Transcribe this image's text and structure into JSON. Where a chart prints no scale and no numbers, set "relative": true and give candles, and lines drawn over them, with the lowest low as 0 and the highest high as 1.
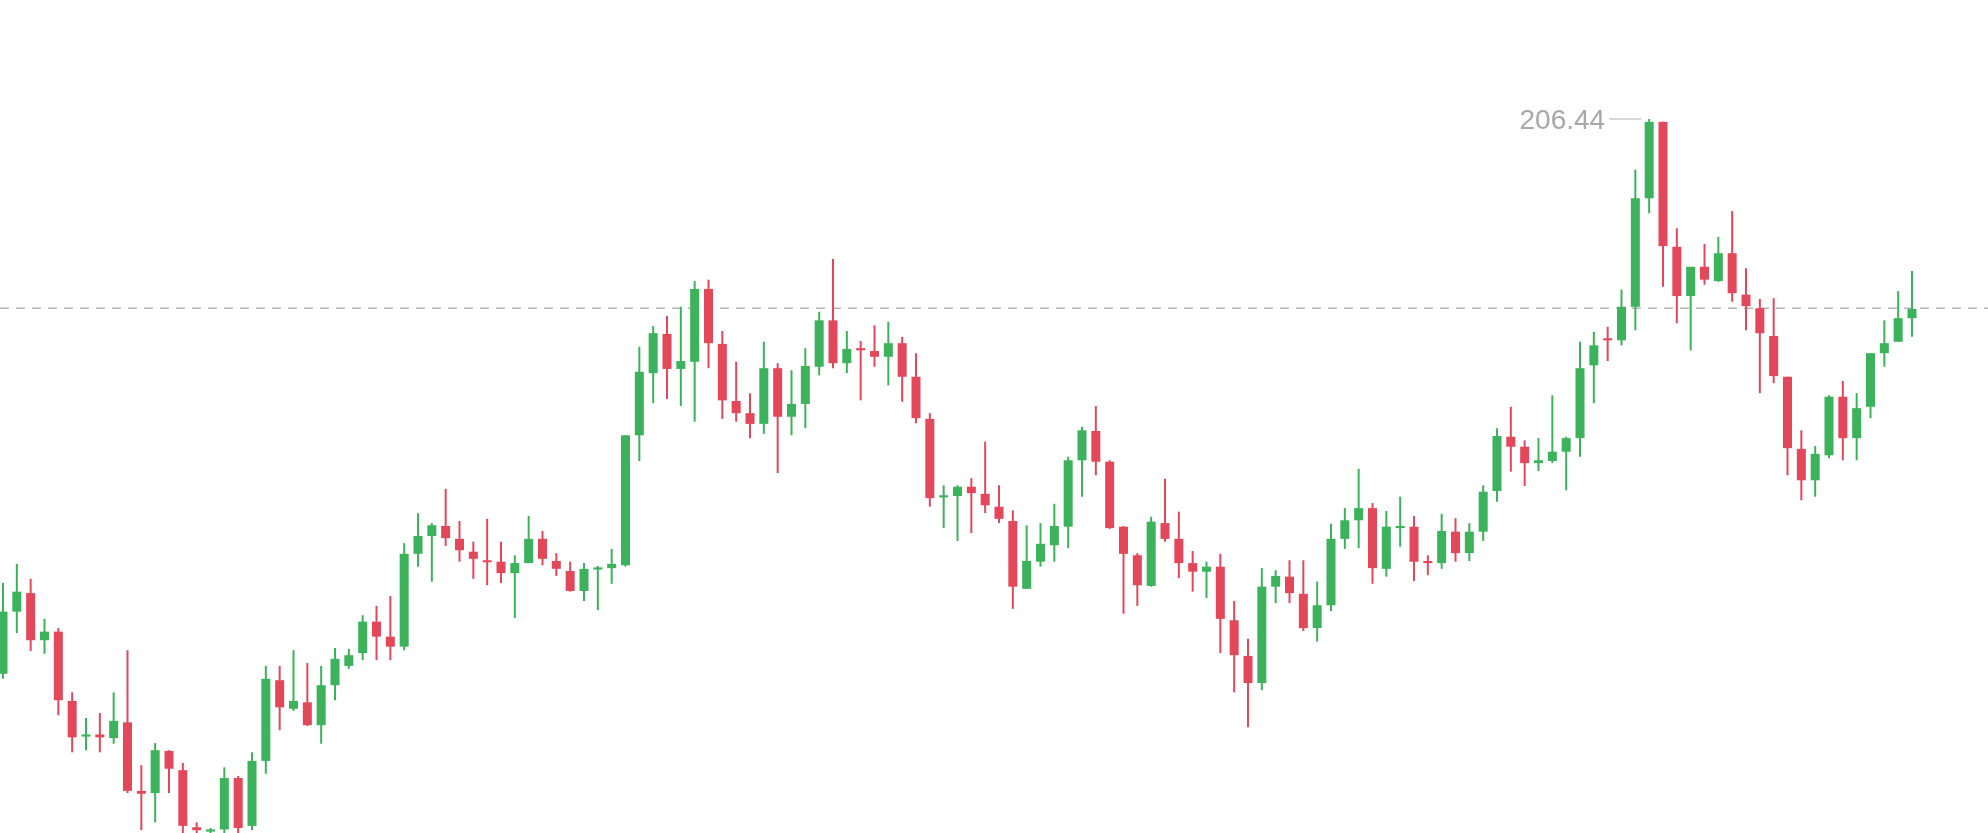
{
  "chart_data": {
    "type": "candlestick",
    "relative": true,
    "categories": [
      null,
      null,
      null,
      null,
      null,
      null,
      null,
      null,
      null,
      null,
      null,
      null,
      null,
      null,
      null,
      null,
      null,
      null,
      null,
      null,
      null,
      null,
      null,
      null,
      null,
      null,
      null,
      null,
      null,
      null,
      null,
      null,
      null,
      null,
      null,
      null,
      null,
      null,
      null,
      null,
      null,
      null,
      null,
      null,
      null,
      null,
      null,
      null,
      null,
      null,
      null,
      null,
      null,
      null,
      null,
      null,
      null,
      null,
      null,
      null,
      null,
      null,
      null,
      null,
      null,
      null,
      null,
      null,
      null,
      null,
      null,
      null,
      null,
      null,
      null,
      null,
      null,
      null,
      null,
      null,
      null,
      null,
      null,
      null,
      null,
      null,
      null,
      null,
      null,
      null,
      null,
      null,
      null,
      null,
      null,
      null,
      null,
      null,
      null,
      null,
      null,
      null,
      null,
      null,
      null,
      null,
      null,
      null,
      null,
      null,
      null,
      null,
      null,
      null,
      null,
      null,
      null,
      null,
      null,
      null,
      null,
      null,
      null,
      null,
      null,
      null,
      null,
      null,
      null,
      null,
      null,
      null,
      null,
      null,
      null,
      null,
      null,
      null,
      null
    ],
    "ohlc": [
      [
        0.223,
        0.35,
        0.216,
        0.31
      ],
      [
        0.31,
        0.377,
        0.28,
        0.338
      ],
      [
        0.336,
        0.356,
        0.255,
        0.27
      ],
      [
        0.27,
        0.3,
        0.251,
        0.282
      ],
      [
        0.282,
        0.287,
        0.165,
        0.186
      ],
      [
        0.185,
        0.197,
        0.113,
        0.134
      ],
      [
        0.135,
        0.161,
        0.116,
        0.138
      ],
      [
        0.138,
        0.168,
        0.113,
        0.134
      ],
      [
        0.133,
        0.197,
        0.125,
        0.157
      ],
      [
        0.155,
        0.256,
        0.056,
        0.059
      ],
      [
        0.059,
        0.095,
        0.004,
        0.055
      ],
      [
        0.056,
        0.126,
        0.015,
        0.116
      ],
      [
        0.115,
        0.116,
        0.056,
        0.09
      ],
      [
        0.088,
        0.098,
        0,
        0.01
      ],
      [
        0.008,
        0.015,
        0,
        0.004
      ],
      [
        0.002,
        0.007,
        0,
        0.005
      ],
      [
        0.005,
        0.092,
        0,
        0.077
      ],
      [
        0.077,
        0.08,
        0,
        0.007
      ],
      [
        0.01,
        0.113,
        0.004,
        0.101
      ],
      [
        0.101,
        0.234,
        0.083,
        0.216
      ],
      [
        0.214,
        0.234,
        0.144,
        0.176
      ],
      [
        0.174,
        0.256,
        0.171,
        0.185
      ],
      [
        0.183,
        0.238,
        0.15,
        0.151
      ],
      [
        0.151,
        0.234,
        0.125,
        0.207
      ],
      [
        0.207,
        0.259,
        0.186,
        0.244
      ],
      [
        0.234,
        0.258,
        0.23,
        0.249
      ],
      [
        0.252,
        0.305,
        0.242,
        0.296
      ],
      [
        0.296,
        0.318,
        0.242,
        0.275
      ],
      [
        0.275,
        0.332,
        0.242,
        0.261
      ],
      [
        0.261,
        0.406,
        0.256,
        0.391
      ],
      [
        0.391,
        0.448,
        0.373,
        0.416
      ],
      [
        0.416,
        0.434,
        0.352,
        0.431
      ],
      [
        0.43,
        0.482,
        0.402,
        0.413
      ],
      [
        0.412,
        0.437,
        0.38,
        0.396
      ],
      [
        0.394,
        0.408,
        0.356,
        0.384
      ],
      [
        0.382,
        0.44,
        0.347,
        0.38
      ],
      [
        0.38,
        0.408,
        0.35,
        0.364
      ],
      [
        0.364,
        0.389,
        0.301,
        0.378
      ],
      [
        0.378,
        0.444,
        0.378,
        0.412
      ],
      [
        0.412,
        0.423,
        0.375,
        0.384
      ],
      [
        0.381,
        0.392,
        0.36,
        0.37
      ],
      [
        0.367,
        0.38,
        0.338,
        0.339
      ],
      [
        0.339,
        0.378,
        0.325,
        0.37
      ],
      [
        0.369,
        0.374,
        0.312,
        0.372
      ],
      [
        0.371,
        0.398,
        0.349,
        0.377
      ],
      [
        0.375,
        0.557,
        0.373,
        0.557
      ],
      [
        0.557,
        0.681,
        0.521,
        0.646
      ],
      [
        0.644,
        0.71,
        0.602,
        0.7
      ],
      [
        0.699,
        0.724,
        0.608,
        0.65
      ],
      [
        0.65,
        0.737,
        0.598,
        0.661
      ],
      [
        0.66,
        0.773,
        0.576,
        0.762
      ],
      [
        0.762,
        0.775,
        0.651,
        0.686
      ],
      [
        0.685,
        0.703,
        0.58,
        0.606
      ],
      [
        0.605,
        0.66,
        0.576,
        0.588
      ],
      [
        0.588,
        0.616,
        0.553,
        0.573
      ],
      [
        0.573,
        0.688,
        0.559,
        0.651
      ],
      [
        0.651,
        0.658,
        0.504,
        0.583
      ],
      [
        0.583,
        0.648,
        0.557,
        0.601
      ],
      [
        0.601,
        0.679,
        0.567,
        0.654
      ],
      [
        0.653,
        0.73,
        0.641,
        0.718
      ],
      [
        0.718,
        0.804,
        0.651,
        0.658
      ],
      [
        0.658,
        0.703,
        0.644,
        0.678
      ],
      [
        0.679,
        0.689,
        0.606,
        0.676
      ],
      [
        0.675,
        0.711,
        0.653,
        0.667
      ],
      [
        0.667,
        0.716,
        0.627,
        0.686
      ],
      [
        0.686,
        0.695,
        0.604,
        0.639
      ],
      [
        0.639,
        0.672,
        0.574,
        0.581
      ],
      [
        0.58,
        0.588,
        0.457,
        0.469
      ],
      [
        0.47,
        0.487,
        0.427,
        0.473
      ],
      [
        0.472,
        0.487,
        0.409,
        0.485
      ],
      [
        0.485,
        0.497,
        0.42,
        0.476
      ],
      [
        0.475,
        0.548,
        0.448,
        0.459
      ],
      [
        0.457,
        0.487,
        0.434,
        0.44
      ],
      [
        0.437,
        0.452,
        0.314,
        0.345
      ],
      [
        0.342,
        0.431,
        0.342,
        0.381
      ],
      [
        0.38,
        0.434,
        0.373,
        0.405
      ],
      [
        0.403,
        0.461,
        0.38,
        0.43
      ],
      [
        0.429,
        0.527,
        0.399,
        0.522
      ],
      [
        0.522,
        0.569,
        0.471,
        0.564
      ],
      [
        0.563,
        0.598,
        0.501,
        0.52
      ],
      [
        0.52,
        0.522,
        0.426,
        0.427
      ],
      [
        0.429,
        0.43,
        0.307,
        0.391
      ],
      [
        0.389,
        0.392,
        0.318,
        0.347
      ],
      [
        0.346,
        0.443,
        0.345,
        0.436
      ],
      [
        0.434,
        0.496,
        0.408,
        0.412
      ],
      [
        0.412,
        0.45,
        0.357,
        0.378
      ],
      [
        0.378,
        0.395,
        0.338,
        0.366
      ],
      [
        0.366,
        0.38,
        0.329,
        0.373
      ],
      [
        0.373,
        0.391,
        0.252,
        0.3
      ],
      [
        0.298,
        0.325,
        0.197,
        0.249
      ],
      [
        0.248,
        0.272,
        0.148,
        0.21
      ],
      [
        0.21,
        0.371,
        0.2,
        0.345
      ],
      [
        0.345,
        0.368,
        0.322,
        0.36
      ],
      [
        0.359,
        0.382,
        0.322,
        0.336
      ],
      [
        0.335,
        0.382,
        0.283,
        0.287
      ],
      [
        0.287,
        0.352,
        0.268,
        0.319
      ],
      [
        0.319,
        0.433,
        0.311,
        0.412
      ],
      [
        0.412,
        0.455,
        0.398,
        0.438
      ],
      [
        0.438,
        0.51,
        0.399,
        0.455
      ],
      [
        0.455,
        0.462,
        0.349,
        0.371
      ],
      [
        0.37,
        0.451,
        0.359,
        0.429
      ],
      [
        0.427,
        0.471,
        0.401,
        0.43
      ],
      [
        0.429,
        0.444,
        0.353,
        0.38
      ],
      [
        0.381,
        0.389,
        0.361,
        0.378
      ],
      [
        0.378,
        0.447,
        0.37,
        0.423
      ],
      [
        0.422,
        0.441,
        0.38,
        0.392
      ],
      [
        0.392,
        0.434,
        0.381,
        0.422
      ],
      [
        0.422,
        0.487,
        0.409,
        0.478
      ],
      [
        0.479,
        0.567,
        0.464,
        0.556
      ],
      [
        0.555,
        0.597,
        0.506,
        0.541
      ],
      [
        0.541,
        0.55,
        0.486,
        0.518
      ],
      [
        0.518,
        0.553,
        0.507,
        0.522
      ],
      [
        0.521,
        0.613,
        0.518,
        0.534
      ],
      [
        0.534,
        0.555,
        0.48,
        0.553
      ],
      [
        0.553,
        0.688,
        0.527,
        0.651
      ],
      [
        0.655,
        0.702,
        0.602,
        0.683
      ],
      [
        0.693,
        0.709,
        0.661,
        0.69
      ],
      [
        0.69,
        0.761,
        0.683,
        0.737
      ],
      [
        0.737,
        0.929,
        0.704,
        0.889
      ],
      [
        0.889,
        1,
        0.868,
        0.996
      ],
      [
        0.996,
        0.996,
        0.765,
        0.822
      ],
      [
        0.821,
        0.847,
        0.714,
        0.752
      ],
      [
        0.752,
        0.793,
        0.676,
        0.793
      ],
      [
        0.793,
        0.825,
        0.768,
        0.775
      ],
      [
        0.773,
        0.835,
        0.772,
        0.812
      ],
      [
        0.812,
        0.871,
        0.744,
        0.756
      ],
      [
        0.754,
        0.791,
        0.704,
        0.738
      ],
      [
        0.735,
        0.748,
        0.616,
        0.7
      ],
      [
        0.696,
        0.749,
        0.63,
        0.64
      ],
      [
        0.639,
        0.639,
        0.501,
        0.539
      ],
      [
        0.538,
        0.564,
        0.466,
        0.494
      ],
      [
        0.494,
        0.542,
        0.471,
        0.531
      ],
      [
        0.529,
        0.613,
        0.525,
        0.611
      ],
      [
        0.611,
        0.633,
        0.522,
        0.553
      ],
      [
        0.553,
        0.616,
        0.522,
        0.595
      ],
      [
        0.597,
        0.672,
        0.581,
        0.672
      ],
      [
        0.672,
        0.718,
        0.653,
        0.686
      ],
      [
        0.688,
        0.759,
        0.688,
        0.721
      ],
      [
        0.721,
        0.787,
        0.695,
        0.734
      ]
    ],
    "colors": [
      "#3bb25b",
      "#3bb25b",
      "#e2485a",
      "#3bb25b",
      "#e2485a",
      "#e2485a",
      "#3bb25b",
      "#e2485a",
      "#3bb25b",
      "#e2485a",
      "#e2485a",
      "#3bb25b",
      "#e2485a",
      "#e2485a",
      "#e2485a",
      "#3bb25b",
      "#3bb25b",
      "#e2485a",
      "#3bb25b",
      "#3bb25b",
      "#e2485a",
      "#3bb25b",
      "#e2485a",
      "#3bb25b",
      "#3bb25b",
      "#3bb25b",
      "#3bb25b",
      "#e2485a",
      "#e2485a",
      "#3bb25b",
      "#3bb25b",
      "#3bb25b",
      "#e2485a",
      "#e2485a",
      "#e2485a",
      "#e2485a",
      "#e2485a",
      "#3bb25b",
      "#3bb25b",
      "#e2485a",
      "#e2485a",
      "#e2485a",
      "#3bb25b",
      "#3bb25b",
      "#3bb25b",
      "#3bb25b",
      "#3bb25b",
      "#3bb25b",
      "#e2485a",
      "#3bb25b",
      "#3bb25b",
      "#e2485a",
      "#e2485a",
      "#e2485a",
      "#e2485a",
      "#3bb25b",
      "#e2485a",
      "#3bb25b",
      "#3bb25b",
      "#3bb25b",
      "#e2485a",
      "#3bb25b",
      "#e2485a",
      "#e2485a",
      "#3bb25b",
      "#e2485a",
      "#e2485a",
      "#e2485a",
      "#3bb25b",
      "#3bb25b",
      "#e2485a",
      "#e2485a",
      "#e2485a",
      "#e2485a",
      "#3bb25b",
      "#3bb25b",
      "#3bb25b",
      "#3bb25b",
      "#3bb25b",
      "#e2485a",
      "#e2485a",
      "#e2485a",
      "#e2485a",
      "#3bb25b",
      "#e2485a",
      "#e2485a",
      "#e2485a",
      "#3bb25b",
      "#e2485a",
      "#e2485a",
      "#e2485a",
      "#3bb25b",
      "#3bb25b",
      "#e2485a",
      "#e2485a",
      "#3bb25b",
      "#3bb25b",
      "#3bb25b",
      "#3bb25b",
      "#e2485a",
      "#3bb25b",
      "#3bb25b",
      "#e2485a",
      "#e2485a",
      "#3bb25b",
      "#e2485a",
      "#3bb25b",
      "#3bb25b",
      "#3bb25b",
      "#e2485a",
      "#e2485a",
      "#3bb25b",
      "#3bb25b",
      "#3bb25b",
      "#3bb25b",
      "#3bb25b",
      "#e2485a",
      "#3bb25b",
      "#3bb25b",
      "#3bb25b",
      "#e2485a",
      "#e2485a",
      "#3bb25b",
      "#e2485a",
      "#3bb25b",
      "#e2485a",
      "#e2485a",
      "#e2485a",
      "#e2485a",
      "#e2485a",
      "#e2485a",
      "#3bb25b",
      "#3bb25b",
      "#e2485a",
      "#3bb25b",
      "#3bb25b",
      "#3bb25b",
      "#3bb25b",
      "#3bb25b"
    ],
    "ref_lines": [
      {
        "axis": "y",
        "value": 0.735,
        "line_style": "dashed",
        "color": "#b4b4b4"
      }
    ],
    "annotations": [
      "206.44"
    ]
  }
}
